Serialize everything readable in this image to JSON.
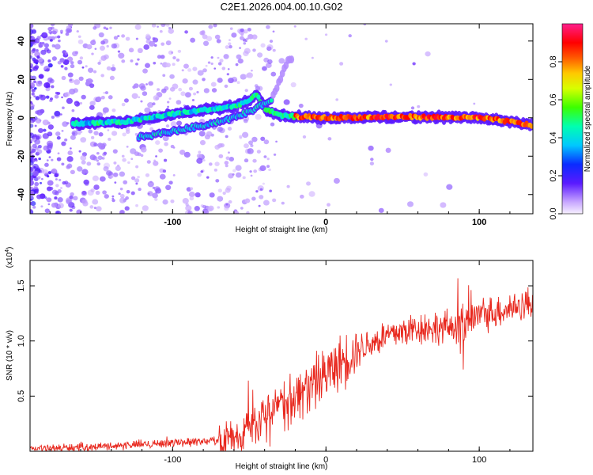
{
  "title": "C2E1.2026.004.00.10.G02",
  "chart_data": [
    {
      "type": "heatmap",
      "xlabel": "Height of straight line (km)",
      "ylabel": "Frequency (Hz)",
      "xlim": [
        -193,
        135
      ],
      "ylim": [
        -50,
        49
      ],
      "xticks": [
        -100,
        0,
        100
      ],
      "yticks": [
        -40,
        -20,
        0,
        20,
        40
      ],
      "colorbar": {
        "label": "Normalized spectral amplitude",
        "range": [
          0,
          1
        ],
        "ticks": [
          "0.0",
          "0.2",
          "0.4",
          "0.6",
          "0.8"
        ]
      },
      "ridge": {
        "main_trace": [
          [
            -160,
            -3
          ],
          [
            -130,
            -2
          ],
          [
            -100,
            2
          ],
          [
            -80,
            4
          ],
          [
            -60,
            6
          ],
          [
            -50,
            9
          ],
          [
            -45,
            12
          ],
          [
            -40,
            5
          ],
          [
            -30,
            1
          ],
          [
            0,
            0
          ],
          [
            50,
            0.5
          ],
          [
            100,
            0
          ],
          [
            120,
            -2
          ],
          [
            135,
            -4
          ]
        ],
        "secondary_trace": [
          [
            -120,
            -10
          ],
          [
            -100,
            -7
          ],
          [
            -80,
            -4
          ],
          [
            -60,
            0
          ],
          [
            -45,
            5
          ],
          [
            -35,
            10
          ],
          [
            -25,
            30
          ]
        ]
      }
    },
    {
      "type": "line",
      "xlabel": "Height of straight line (km)",
      "ylabel": "SNR (10 * v/v)",
      "multiplier": "(x10^4)",
      "xlim": [
        -193,
        135
      ],
      "ylim": [
        0,
        1.73
      ],
      "xticks": [
        -100,
        0,
        100
      ],
      "yticks": [
        0.5,
        1.0,
        1.5
      ],
      "ytick_labels": [
        "0.5",
        "1.0",
        "1.5"
      ],
      "color": "#e8281e",
      "trend": {
        "x": [
          -193,
          -150,
          -100,
          -70,
          -60,
          -40,
          -20,
          0,
          20,
          40,
          60,
          80,
          100,
          120,
          135
        ],
        "y": [
          0.02,
          0.04,
          0.08,
          0.1,
          0.13,
          0.3,
          0.5,
          0.7,
          0.92,
          1.05,
          1.12,
          1.12,
          1.23,
          1.3,
          1.35
        ]
      }
    }
  ]
}
